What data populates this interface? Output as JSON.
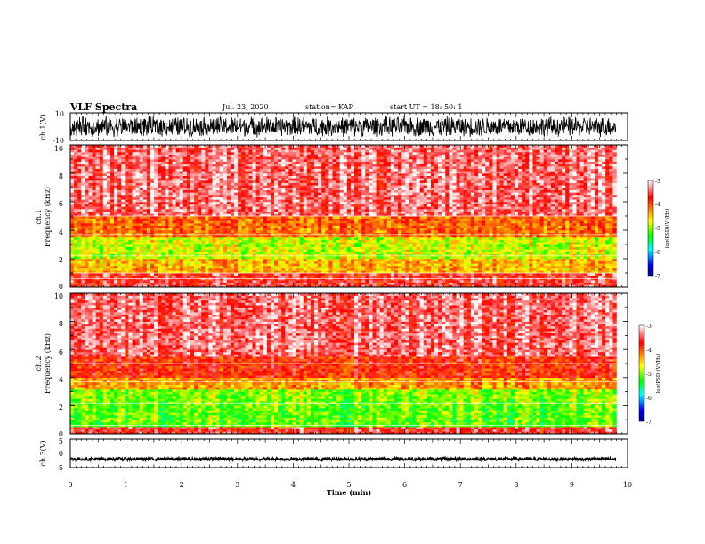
{
  "header": {
    "title": "VLF Spectra",
    "date": "Jul. 23, 2020",
    "station": "station= KAP",
    "start": "start UT = 18: 50: 1"
  },
  "panels": {
    "ch1_wave": {
      "ylabel": "ch.1(V)",
      "tick_labels": [
        "10",
        "-10"
      ]
    },
    "ch1_spec": {
      "ylabel_1": "ch.1",
      "ylabel_2": "Frequency (kHz)",
      "tick_labels": [
        "10",
        "8",
        "6",
        "4",
        "2",
        "0"
      ]
    },
    "ch2_spec": {
      "ylabel_1": "ch.2",
      "ylabel_2": "Frequency (kHz)",
      "tick_labels": [
        "10",
        "8",
        "6",
        "4",
        "2",
        "0"
      ]
    },
    "ch3_wave": {
      "ylabel": "ch.3(V)",
      "tick_labels": [
        "5",
        "0",
        "-5"
      ]
    }
  },
  "colorbar": {
    "label": "log(PSD)(V²/Hz)",
    "tick_labels": [
      "-3",
      "-4",
      "-5",
      "-6",
      "-7"
    ],
    "colors": [
      "#ffffff",
      "#ff0000",
      "#ffff00",
      "#00ff00",
      "#00ffff",
      "#0000ff",
      "#000080"
    ]
  },
  "xaxis": {
    "label": "Time (min)",
    "tick_labels": [
      "0",
      "1",
      "2",
      "3",
      "4",
      "5",
      "6",
      "7",
      "8",
      "9",
      "10"
    ]
  },
  "chart_data": [
    {
      "type": "line",
      "name": "ch1-waveform",
      "ylim": [
        -10,
        10
      ],
      "xlim": [
        0,
        10
      ],
      "note_visible": "noisy waveform, amplitude roughly -8 to +8 V"
    },
    {
      "type": "heatmap",
      "name": "ch1-spectrogram",
      "xlim": [
        0,
        10
      ],
      "ylim": [
        0,
        10
      ],
      "zlim": [
        -7,
        -3
      ],
      "bands_khz": [
        {
          "from": 0,
          "to": 1,
          "level": -3.6
        },
        {
          "from": 1,
          "to": 2,
          "level": -4.4
        },
        {
          "from": 2,
          "to": 3.5,
          "level": -4.8
        },
        {
          "from": 3.5,
          "to": 5,
          "level": -4.1
        },
        {
          "from": 5,
          "to": 10,
          "level": -3.4
        }
      ]
    },
    {
      "type": "heatmap",
      "name": "ch2-spectrogram",
      "xlim": [
        0,
        10
      ],
      "ylim": [
        0,
        10
      ],
      "zlim": [
        -7,
        -3
      ],
      "bands_khz": [
        {
          "from": 0,
          "to": 0.5,
          "level": -3.6
        },
        {
          "from": 0.5,
          "to": 2,
          "level": -5.1
        },
        {
          "from": 2,
          "to": 3.2,
          "level": -5.0
        },
        {
          "from": 3.2,
          "to": 4,
          "level": -4.3
        },
        {
          "from": 4,
          "to": 5.5,
          "level": -3.8
        },
        {
          "from": 5.5,
          "to": 10,
          "level": -3.4
        }
      ]
    },
    {
      "type": "line",
      "name": "ch3-waveform",
      "ylim": [
        -5,
        5
      ],
      "xlim": [
        0,
        10
      ],
      "values_approx": {
        "center": -2,
        "spread": 0.6
      }
    }
  ]
}
